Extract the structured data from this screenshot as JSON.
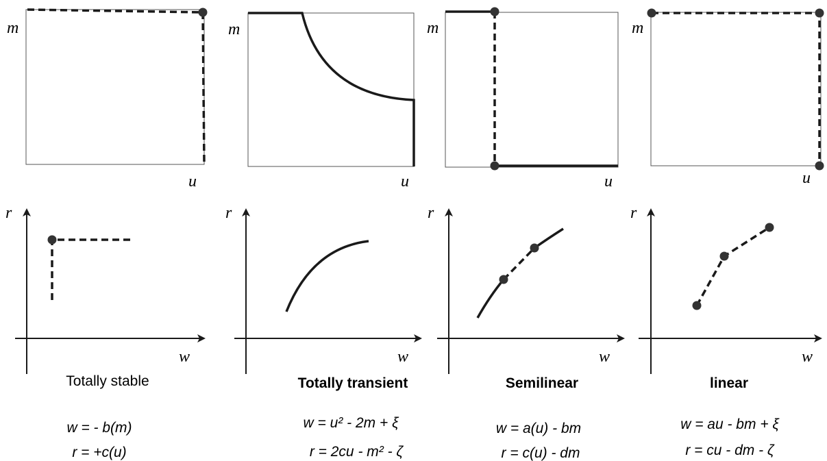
{
  "panels": [
    {
      "top_y_label": "m",
      "top_x_label": "u",
      "bottom_y_label": "r",
      "bottom_x_label": "w",
      "title": "Totally stable",
      "eq1": "w = - b(m)",
      "eq2": "r = +c(u)"
    },
    {
      "top_y_label": "m",
      "top_x_label": "u",
      "bottom_y_label": "r",
      "bottom_x_label": "w",
      "title": "Totally transient",
      "eq1": "w = u² -  2m + ξ",
      "eq2": "r = 2cu -  m² -  ζ"
    },
    {
      "top_y_label": "m",
      "top_x_label": "u",
      "bottom_y_label": "r",
      "bottom_x_label": "w",
      "title": "Semilinear",
      "eq1": "w = a(u) -  bm",
      "eq2": "r = c(u) -  dm"
    },
    {
      "top_y_label": "m",
      "top_x_label": "u",
      "bottom_y_label": "r",
      "bottom_x_label": "w",
      "title": "linear",
      "eq1": "w = au -  bm + ξ",
      "eq2": "r = cu -  dm -  ζ"
    }
  ]
}
